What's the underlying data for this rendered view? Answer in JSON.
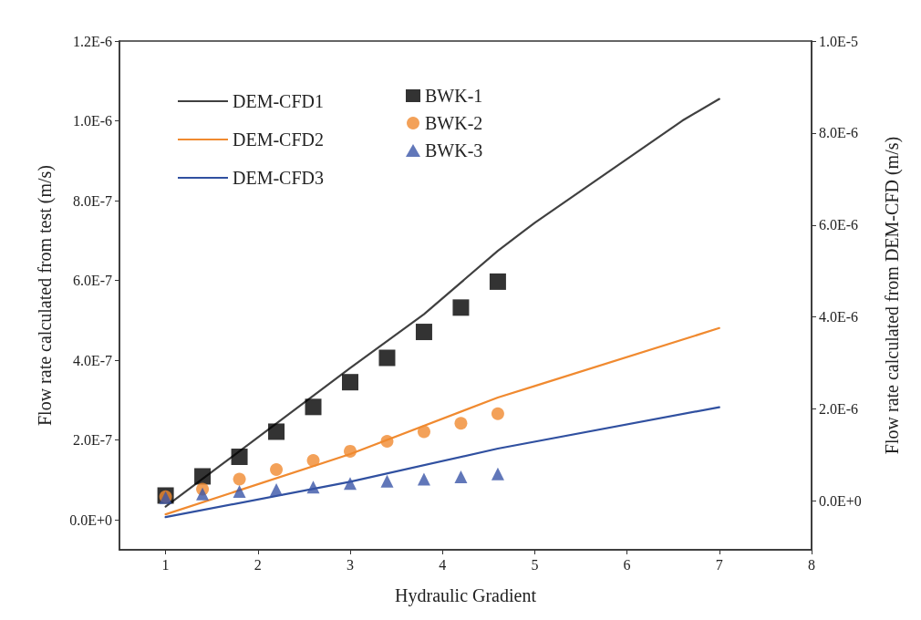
{
  "chart_data": {
    "type": "line",
    "xlabel": "Hydraulic Gradient",
    "ylabel": "Flow rate calculated from test (m/s)",
    "y2label": "Flow rate calculated from DEM-CFD (m/s)",
    "xlim": [
      0.5,
      8
    ],
    "xticks": [
      1,
      2,
      3,
      4,
      5,
      6,
      7,
      8
    ],
    "ylim": [
      -7.5e-08,
      1.2e-06
    ],
    "yticks": [
      {
        "value": 0,
        "label": "0.0E+0"
      },
      {
        "value": 2e-07,
        "label": "2.0E-7"
      },
      {
        "value": 4e-07,
        "label": "4.0E-7"
      },
      {
        "value": 6e-07,
        "label": "6.0E-7"
      },
      {
        "value": 8e-07,
        "label": "8.0E-7"
      },
      {
        "value": 1e-06,
        "label": "1.0E-6"
      },
      {
        "value": 1.2e-06,
        "label": "1.2E-6"
      }
    ],
    "y2lim": [
      -1.06e-06,
      1e-05
    ],
    "y2ticks": [
      {
        "value": 0,
        "label": "0.0E+0"
      },
      {
        "value": 2e-06,
        "label": "2.0E-6"
      },
      {
        "value": 4e-06,
        "label": "4.0E-6"
      },
      {
        "value": 6e-06,
        "label": "6.0E-6"
      },
      {
        "value": 8e-06,
        "label": "8.0E-6"
      },
      {
        "value": 1e-05,
        "label": "1.0E-5"
      }
    ],
    "legend": "top left",
    "grid": false,
    "series": [
      {
        "name": "DEM-CFD1",
        "axis": "y2",
        "color": "#404040",
        "marker": "none",
        "x": [
          1,
          3,
          3.8,
          4.6,
          5,
          6.6,
          7
        ],
        "values": [
          -1.2e-07,
          2.89e-06,
          4.06e-06,
          5.44e-06,
          6.05e-06,
          8.27e-06,
          8.74e-06
        ]
      },
      {
        "name": "DEM-CFD2",
        "axis": "y2",
        "color": "#f08a30",
        "marker": "none",
        "x": [
          1,
          3,
          4.6,
          5,
          7
        ],
        "values": [
          -2.9e-07,
          1.02e-06,
          2.25e-06,
          2.5e-06,
          3.76e-06
        ]
      },
      {
        "name": "DEM-CFD3",
        "axis": "y2",
        "color": "#3050a0",
        "marker": "none",
        "x": [
          1,
          3,
          4.6,
          7
        ],
        "values": [
          -3.5e-07,
          4.2e-07,
          1.14e-06,
          2.04e-06
        ]
      },
      {
        "name": "BWK-1",
        "type": "scatter",
        "color": "#000000",
        "marker": "square",
        "x": [
          1,
          1.4,
          1.8,
          2.2,
          2.6,
          3,
          3.4,
          3.8,
          4.2,
          4.6
        ],
        "values": [
          6.1e-08,
          1.09e-07,
          1.58e-07,
          2.21e-07,
          2.83e-07,
          3.45e-07,
          4.06e-07,
          4.71e-07,
          5.32e-07,
          5.97e-07
        ]
      },
      {
        "name": "BWK-2",
        "type": "scatter",
        "color": "#f08a30",
        "marker": "circle",
        "x": [
          1,
          1.4,
          1.8,
          2.2,
          2.6,
          3,
          3.4,
          3.8,
          4.2,
          4.6
        ],
        "values": [
          5.8e-08,
          7.7e-08,
          1.02e-07,
          1.26e-07,
          1.49e-07,
          1.72e-07,
          1.97e-07,
          2.21e-07,
          2.42e-07,
          2.66e-07
        ]
      },
      {
        "name": "BWK-3",
        "type": "scatter",
        "color": "#3a55a8",
        "marker": "triangle",
        "x": [
          1,
          1.4,
          1.8,
          2.2,
          2.6,
          3,
          3.4,
          3.8,
          4.2,
          4.6
        ],
        "values": [
          5.6e-08,
          6.5e-08,
          7.1e-08,
          7.6e-08,
          8.2e-08,
          9.1e-08,
          9.7e-08,
          1.02e-07,
          1.08e-07,
          1.15e-07
        ]
      }
    ]
  }
}
